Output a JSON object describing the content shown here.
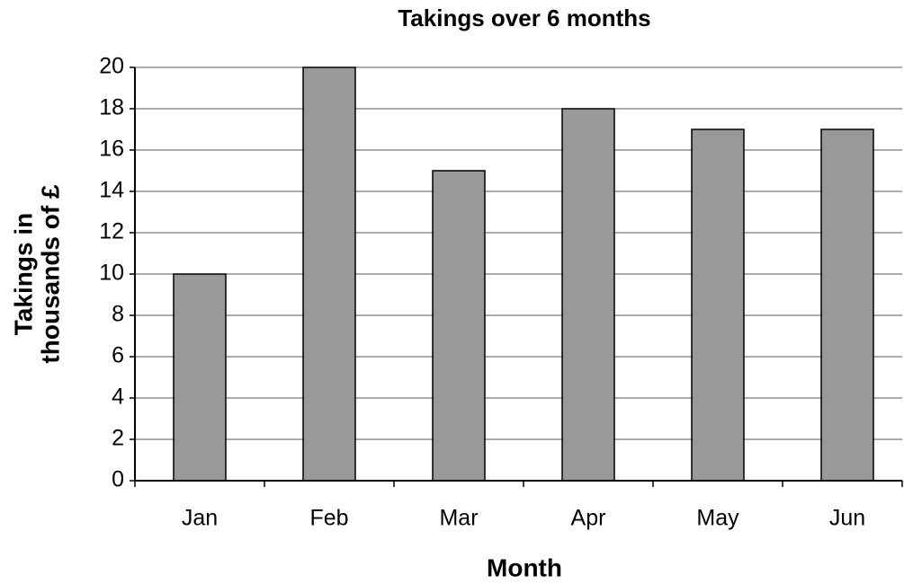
{
  "chart_data": {
    "type": "bar",
    "title": "Takings over 6 months",
    "x_label": "Month",
    "y_label": [
      "Takings in",
      "thousands of £"
    ],
    "categories": [
      "Jan",
      "Feb",
      "Mar",
      "Apr",
      "May",
      "Jun"
    ],
    "values": [
      10,
      20,
      15,
      18,
      17,
      17
    ],
    "color": "#999999",
    "ylim": [
      0,
      20
    ],
    "yticks": [
      0,
      2,
      4,
      6,
      8,
      10,
      12,
      14,
      16,
      18,
      20
    ],
    "grid": true
  }
}
